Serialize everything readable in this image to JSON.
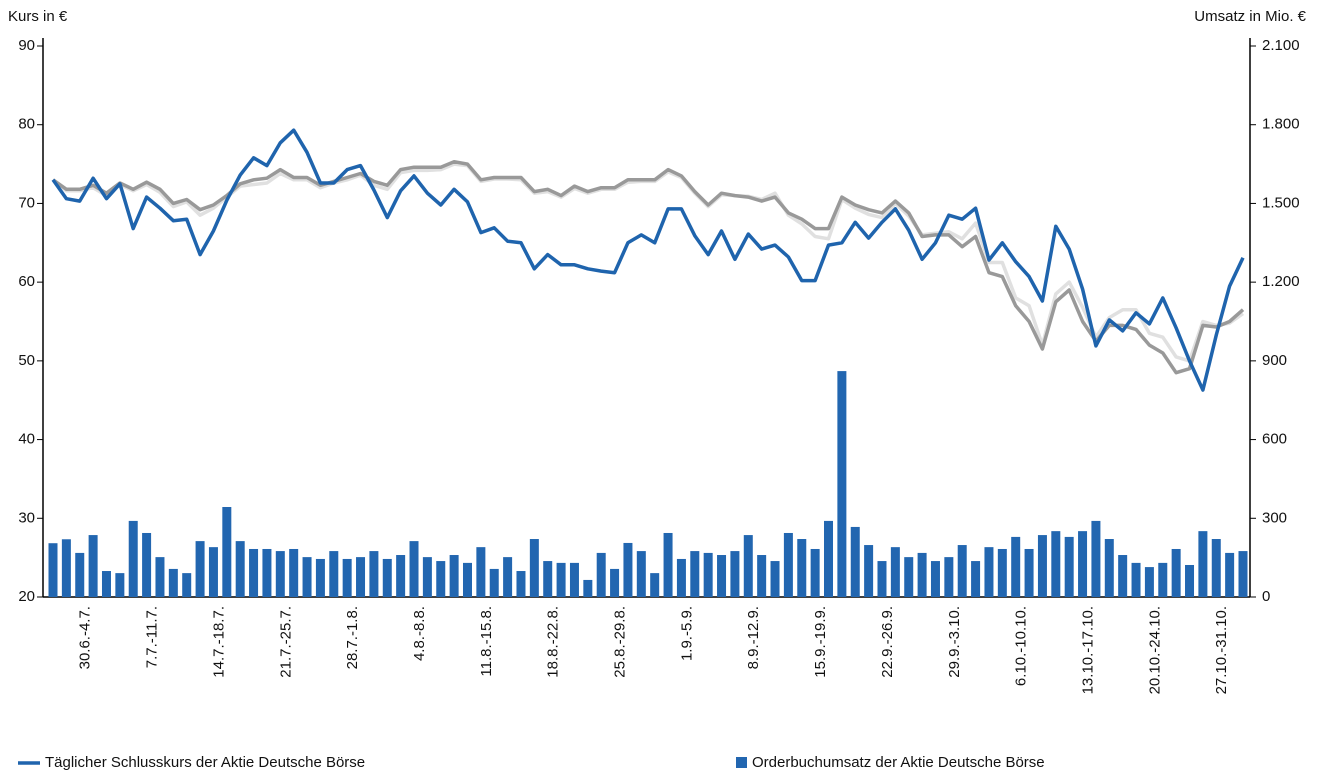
{
  "chart_data": {
    "type": "line",
    "ylabel": "Kurs in €",
    "y2label": "Umsatz in Mio. €",
    "ylim": [
      20,
      90
    ],
    "yticks": [
      20,
      30,
      40,
      50,
      60,
      70,
      80,
      90
    ],
    "y2lim": [
      0,
      2100
    ],
    "y2ticks": [
      0,
      300,
      600,
      900,
      {
        "value": 1200,
        "label": "1.200"
      },
      {
        "value": 1500,
        "label": "1.500"
      },
      {
        "value": 1800,
        "label": "1.800"
      },
      {
        "value": 2100,
        "label": "2.100"
      }
    ],
    "legend": "bottom",
    "categories": [
      null,
      null,
      "30.6.-4.7.",
      null,
      null,
      null,
      null,
      "7.7.-11.7.",
      null,
      null,
      null,
      null,
      "14.7.-18.7.",
      null,
      null,
      null,
      null,
      "21.7.-25.7.",
      null,
      null,
      null,
      null,
      "28.7.-1.8.",
      null,
      null,
      null,
      null,
      "4.8.-8.8.",
      null,
      null,
      null,
      null,
      "11.8.-15.8.",
      null,
      null,
      null,
      null,
      "18.8.-22.8.",
      null,
      null,
      null,
      null,
      "25.8.-29.8.",
      null,
      null,
      null,
      null,
      "1.9.-5.9.",
      null,
      null,
      null,
      null,
      "8.9.-12.9.",
      null,
      null,
      null,
      null,
      "15.9.-19.9.",
      null,
      null,
      null,
      null,
      "22.9.-26.9.",
      null,
      null,
      null,
      null,
      "29.9.-3.10.",
      null,
      null,
      null,
      null,
      "6.10.-10.10.",
      null,
      null,
      null,
      null,
      "13.10.-17.10.",
      null,
      null,
      null,
      null,
      "20.10.-24.10.",
      null,
      null,
      null,
      null,
      "27.10.-31.10.",
      null,
      null
    ],
    "series": [
      {
        "name": "Orderbuchumsatz der Aktie Deutsche Börse",
        "type": "bar",
        "axis": "y2",
        "color": "#2266b0",
        "values": [
          205,
          220,
          168,
          236,
          99,
          91,
          290,
          244,
          152,
          107,
          91,
          213,
          190,
          343,
          213,
          183,
          183,
          175,
          183,
          152,
          145,
          175,
          145,
          152,
          175,
          145,
          160,
          213,
          152,
          137,
          160,
          130,
          190,
          107,
          152,
          99,
          221,
          137,
          130,
          130,
          65,
          168,
          107,
          206,
          175,
          91,
          244,
          145,
          175,
          168,
          160,
          175,
          236,
          160,
          137,
          244,
          221,
          183,
          290,
          861,
          267,
          198,
          137,
          190,
          152,
          168,
          137,
          152,
          198,
          137,
          190,
          183,
          229,
          183,
          236,
          251,
          229,
          251,
          290,
          221,
          160,
          130,
          114,
          130,
          183,
          122,
          251,
          221,
          168,
          175
        ]
      },
      {
        "type": "line",
        "color": "#e0e0e0",
        "values": [
          73.0,
          71.6,
          71.6,
          72.0,
          71.0,
          72.4,
          71.6,
          72.4,
          71.4,
          69.6,
          70.2,
          68.5,
          69.4,
          70.8,
          72.2,
          72.4,
          72.6,
          73.8,
          73.0,
          73.0,
          72.0,
          72.6,
          73.0,
          73.6,
          72.3,
          71.8,
          73.9,
          74.2,
          74.2,
          74.3,
          75.0,
          74.8,
          72.8,
          73.1,
          73.1,
          73.0,
          71.3,
          71.5,
          70.8,
          71.9,
          71.3,
          71.8,
          71.8,
          72.7,
          72.8,
          72.8,
          74.0,
          73.3,
          71.3,
          69.6,
          71.1,
          71.0,
          70.9,
          70.5,
          71.3,
          68.5,
          67.4,
          65.8,
          65.5,
          70.5,
          69.4,
          68.6,
          68.2,
          70.0,
          68.4,
          66.0,
          66.2,
          66.4,
          65.5,
          67.5,
          62.5,
          62.5,
          58.0,
          57.0,
          52.0,
          58.5,
          60.0,
          56.8,
          53.0,
          55.5,
          56.5,
          56.5,
          53.5,
          53.0,
          50.5,
          50.0,
          55.0,
          54.5,
          54.8,
          56.0
        ]
      },
      {
        "type": "line",
        "color": "#999999",
        "values": [
          73.0,
          71.8,
          71.8,
          72.3,
          71.3,
          72.6,
          71.8,
          72.7,
          71.8,
          70.0,
          70.5,
          69.2,
          69.8,
          71.0,
          72.5,
          73.0,
          73.2,
          74.3,
          73.3,
          73.3,
          72.3,
          72.8,
          73.3,
          73.8,
          72.8,
          72.3,
          74.3,
          74.6,
          74.6,
          74.6,
          75.3,
          75.0,
          73.0,
          73.3,
          73.3,
          73.3,
          71.5,
          71.8,
          71.0,
          72.2,
          71.5,
          72.0,
          72.0,
          73.0,
          73.0,
          73.0,
          74.3,
          73.5,
          71.5,
          69.8,
          71.3,
          71.0,
          70.8,
          70.3,
          70.8,
          68.8,
          68.0,
          66.8,
          66.8,
          70.8,
          69.8,
          69.2,
          68.8,
          70.3,
          68.8,
          65.8,
          66.0,
          66.0,
          64.5,
          65.8,
          61.2,
          60.7,
          57.0,
          55.0,
          51.5,
          57.5,
          59.0,
          55.0,
          52.5,
          54.5,
          54.5,
          54.0,
          52.0,
          51.0,
          48.5,
          49.0,
          54.5,
          54.3,
          55.0,
          56.5
        ]
      },
      {
        "name": "Täglicher Schlusskurs der Aktie Deutsche Börse",
        "type": "line",
        "color": "#1f64ad",
        "values": [
          73.0,
          70.6,
          70.3,
          73.2,
          70.6,
          72.5,
          66.8,
          70.8,
          69.4,
          67.8,
          68.0,
          63.5,
          66.5,
          70.4,
          73.6,
          75.8,
          74.8,
          77.7,
          79.3,
          76.5,
          72.6,
          72.6,
          74.3,
          74.8,
          71.7,
          68.2,
          71.6,
          73.5,
          71.3,
          69.8,
          71.8,
          70.2,
          66.3,
          66.9,
          65.2,
          65.0,
          61.7,
          63.5,
          62.2,
          62.2,
          61.7,
          61.4,
          61.2,
          65.0,
          66.0,
          65.0,
          69.3,
          69.3,
          65.9,
          63.5,
          66.5,
          62.9,
          66.1,
          64.2,
          64.7,
          63.2,
          60.2,
          60.2,
          64.7,
          65.0,
          67.6,
          65.6,
          67.6,
          69.3,
          66.6,
          62.9,
          65.0,
          68.5,
          68.0,
          69.4,
          62.8,
          65.0,
          62.6,
          60.7,
          57.6,
          67.1,
          64.2,
          59.1,
          51.9,
          55.2,
          53.8,
          56.1,
          54.7,
          58.0,
          54.2,
          50.0,
          46.3,
          53.3,
          59.5,
          63.1
        ]
      }
    ]
  }
}
